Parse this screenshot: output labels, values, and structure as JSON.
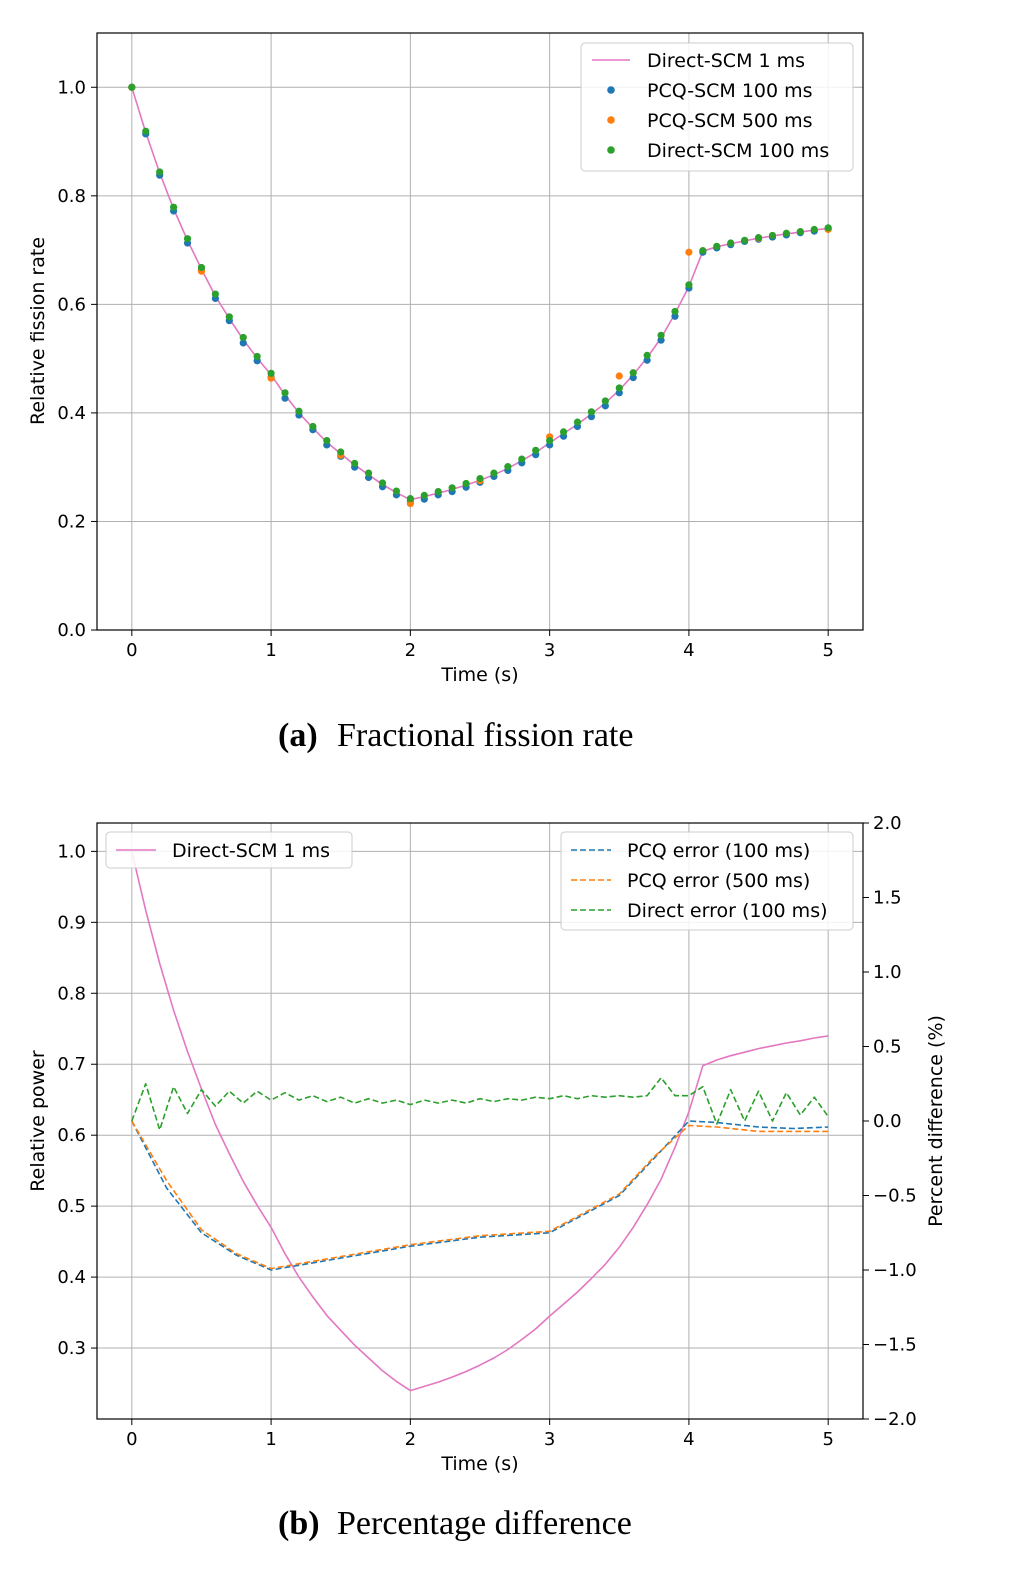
{
  "colors": {
    "direct_1ms": "#e377c2",
    "pcq_100": "#1f77b4",
    "pcq_500": "#ff7f0e",
    "direct_100": "#2ca02c",
    "grid": "#b0b0b0"
  },
  "chart_data": [
    {
      "type": "scatter",
      "panel": "a",
      "caption_label": "(a)",
      "caption_text": "Fractional fission rate",
      "xlabel": "Time (s)",
      "ylabel": "Relative fission rate",
      "xlim": [
        -0.25,
        5.25
      ],
      "ylim": [
        0.0,
        1.1
      ],
      "xticks": [
        0,
        1,
        2,
        3,
        4,
        5
      ],
      "yticks": [
        0.0,
        0.2,
        0.4,
        0.6,
        0.8,
        1.0
      ],
      "xtick_labels": [
        "0",
        "1",
        "2",
        "3",
        "4",
        "5"
      ],
      "ytick_labels": [
        "0.0",
        "0.2",
        "0.4",
        "0.6",
        "0.8",
        "1.0"
      ],
      "grid": true,
      "legend_position": "top-right",
      "legend": [
        "Direct-SCM 1 ms",
        "PCQ-SCM 100 ms",
        "PCQ-SCM 500 ms",
        "Direct-SCM 100 ms"
      ],
      "series": [
        {
          "name": "Direct-SCM 1 ms",
          "style": "line",
          "color_key": "direct_1ms",
          "x": [
            0,
            0.1,
            0.2,
            0.3,
            0.4,
            0.5,
            0.6,
            0.7,
            0.8,
            0.9,
            1.0,
            1.1,
            1.2,
            1.3,
            1.4,
            1.5,
            1.6,
            1.7,
            1.8,
            1.9,
            2.0,
            2.1,
            2.2,
            2.3,
            2.4,
            2.5,
            2.6,
            2.7,
            2.8,
            2.9,
            3.0,
            3.1,
            3.2,
            3.3,
            3.4,
            3.5,
            3.6,
            3.7,
            3.8,
            3.9,
            4.0,
            4.1,
            4.2,
            4.3,
            4.4,
            4.5,
            4.6,
            4.7,
            4.8,
            4.9,
            5.0
          ],
          "y": [
            1.0,
            0.917,
            0.842,
            0.776,
            0.718,
            0.665,
            0.615,
            0.574,
            0.535,
            0.501,
            0.47,
            0.433,
            0.4,
            0.372,
            0.346,
            0.325,
            0.304,
            0.286,
            0.268,
            0.253,
            0.24,
            0.246,
            0.252,
            0.259,
            0.267,
            0.276,
            0.286,
            0.298,
            0.312,
            0.327,
            0.345,
            0.362,
            0.379,
            0.398,
            0.418,
            0.442,
            0.47,
            0.502,
            0.538,
            0.583,
            0.633,
            0.698,
            0.706,
            0.712,
            0.717,
            0.722,
            0.726,
            0.73,
            0.733,
            0.737,
            0.74
          ]
        },
        {
          "name": "PCQ-SCM 100 ms",
          "style": "points",
          "color_key": "pcq_100",
          "x": [
            0,
            0.1,
            0.2,
            0.3,
            0.4,
            0.5,
            0.6,
            0.7,
            0.8,
            0.9,
            1.0,
            1.1,
            1.2,
            1.3,
            1.4,
            1.5,
            1.6,
            1.7,
            1.8,
            1.9,
            2.0,
            2.1,
            2.2,
            2.3,
            2.4,
            2.5,
            2.6,
            2.7,
            2.8,
            2.9,
            3.0,
            3.1,
            3.2,
            3.3,
            3.4,
            3.5,
            3.6,
            3.7,
            3.8,
            3.9,
            4.0,
            4.1,
            4.2,
            4.3,
            4.4,
            4.5,
            4.6,
            4.7,
            4.8,
            4.9,
            5.0
          ],
          "y": [
            1.0,
            0.914,
            0.838,
            0.772,
            0.713,
            0.662,
            0.611,
            0.57,
            0.529,
            0.496,
            0.466,
            0.427,
            0.396,
            0.369,
            0.341,
            0.32,
            0.3,
            0.281,
            0.264,
            0.249,
            0.237,
            0.241,
            0.249,
            0.255,
            0.263,
            0.272,
            0.283,
            0.294,
            0.308,
            0.323,
            0.341,
            0.357,
            0.375,
            0.393,
            0.413,
            0.437,
            0.465,
            0.497,
            0.534,
            0.578,
            0.63,
            0.696,
            0.704,
            0.71,
            0.716,
            0.72,
            0.724,
            0.728,
            0.732,
            0.735,
            0.739
          ]
        },
        {
          "name": "PCQ-SCM 500 ms",
          "style": "points",
          "color_key": "pcq_500",
          "x": [
            0,
            0.5,
            1.0,
            1.5,
            2.0,
            2.5,
            3.0,
            3.5,
            4.0,
            4.5,
            5.0
          ],
          "y": [
            1.0,
            0.661,
            0.464,
            0.322,
            0.233,
            0.275,
            0.356,
            0.468,
            0.696,
            0.722,
            0.738
          ]
        },
        {
          "name": "Direct-SCM 100 ms",
          "style": "points",
          "color_key": "direct_100",
          "x": [
            0,
            0.1,
            0.2,
            0.3,
            0.4,
            0.5,
            0.6,
            0.7,
            0.8,
            0.9,
            1.0,
            1.1,
            1.2,
            1.3,
            1.4,
            1.5,
            1.6,
            1.7,
            1.8,
            1.9,
            2.0,
            2.1,
            2.2,
            2.3,
            2.4,
            2.5,
            2.6,
            2.7,
            2.8,
            2.9,
            3.0,
            3.1,
            3.2,
            3.3,
            3.4,
            3.5,
            3.6,
            3.7,
            3.8,
            3.9,
            4.0,
            4.1,
            4.2,
            4.3,
            4.4,
            4.5,
            4.6,
            4.7,
            4.8,
            4.9,
            5.0
          ],
          "y": [
            1.0,
            0.919,
            0.844,
            0.779,
            0.721,
            0.668,
            0.619,
            0.577,
            0.539,
            0.504,
            0.473,
            0.437,
            0.403,
            0.375,
            0.349,
            0.328,
            0.307,
            0.289,
            0.271,
            0.256,
            0.242,
            0.248,
            0.255,
            0.262,
            0.27,
            0.279,
            0.289,
            0.301,
            0.315,
            0.331,
            0.349,
            0.365,
            0.383,
            0.402,
            0.422,
            0.446,
            0.474,
            0.506,
            0.543,
            0.587,
            0.636,
            0.699,
            0.707,
            0.713,
            0.718,
            0.723,
            0.727,
            0.731,
            0.734,
            0.738,
            0.741
          ]
        }
      ]
    },
    {
      "type": "line",
      "panel": "b",
      "caption_label": "(b)",
      "caption_text": "Percentage difference",
      "xlabel": "Time (s)",
      "ylabel": "Relative power",
      "ylabel_right": "Percent difference (%)",
      "xlim": [
        -0.25,
        5.25
      ],
      "ylim": [
        0.2,
        1.04
      ],
      "ylim_right": [
        -2.0,
        2.0
      ],
      "xticks": [
        0,
        1,
        2,
        3,
        4,
        5
      ],
      "yticks": [
        0.3,
        0.4,
        0.5,
        0.6,
        0.7,
        0.8,
        0.9,
        1.0
      ],
      "yticks_right": [
        -2.0,
        -1.5,
        -1.0,
        -0.5,
        0.0,
        0.5,
        1.0,
        1.5,
        2.0
      ],
      "xtick_labels": [
        "0",
        "1",
        "2",
        "3",
        "4",
        "5"
      ],
      "ytick_labels": [
        "0.3",
        "0.4",
        "0.5",
        "0.6",
        "0.7",
        "0.8",
        "0.9",
        "1.0"
      ],
      "ytick_labels_right": [
        "−2.0",
        "−1.5",
        "−1.0",
        "−0.5",
        "0.0",
        "0.5",
        "1.0",
        "1.5",
        "2.0"
      ],
      "grid": true,
      "legend_left": [
        "Direct-SCM 1 ms"
      ],
      "legend_left_position": "top-left",
      "legend_right": [
        "PCQ error (100 ms)",
        "PCQ error (500 ms)",
        "Direct error (100 ms)"
      ],
      "legend_right_position": "top-right",
      "series": [
        {
          "name": "Direct-SCM 1 ms",
          "axis": "left",
          "style": "solid",
          "color_key": "direct_1ms",
          "x": [
            0,
            0.1,
            0.2,
            0.3,
            0.4,
            0.5,
            0.6,
            0.7,
            0.8,
            0.9,
            1.0,
            1.1,
            1.2,
            1.3,
            1.4,
            1.5,
            1.6,
            1.7,
            1.8,
            1.9,
            2.0,
            2.1,
            2.2,
            2.3,
            2.4,
            2.5,
            2.6,
            2.7,
            2.8,
            2.9,
            3.0,
            3.1,
            3.2,
            3.3,
            3.4,
            3.5,
            3.6,
            3.7,
            3.8,
            3.9,
            4.0,
            4.1,
            4.2,
            4.3,
            4.4,
            4.5,
            4.6,
            4.7,
            4.8,
            4.9,
            5.0
          ],
          "y": [
            1.0,
            0.917,
            0.842,
            0.776,
            0.718,
            0.665,
            0.615,
            0.574,
            0.535,
            0.501,
            0.47,
            0.433,
            0.4,
            0.372,
            0.346,
            0.325,
            0.304,
            0.286,
            0.268,
            0.253,
            0.24,
            0.246,
            0.252,
            0.259,
            0.267,
            0.276,
            0.286,
            0.298,
            0.312,
            0.327,
            0.345,
            0.362,
            0.379,
            0.398,
            0.418,
            0.442,
            0.47,
            0.502,
            0.538,
            0.583,
            0.633,
            0.698,
            0.706,
            0.712,
            0.717,
            0.722,
            0.726,
            0.73,
            0.733,
            0.737,
            0.74
          ]
        },
        {
          "name": "PCQ error (100 ms)",
          "axis": "right",
          "style": "dashed",
          "color_key": "pcq_100",
          "x": [
            0,
            0.25,
            0.5,
            0.75,
            1.0,
            1.5,
            2.0,
            2.5,
            3.0,
            3.5,
            3.75,
            4.0,
            4.2,
            4.5,
            4.75,
            5.0
          ],
          "y": [
            0.0,
            -0.45,
            -0.75,
            -0.9,
            -1.0,
            -0.92,
            -0.84,
            -0.78,
            -0.75,
            -0.5,
            -0.25,
            0.0,
            -0.01,
            -0.04,
            -0.05,
            -0.04
          ]
        },
        {
          "name": "PCQ error (500 ms)",
          "axis": "right",
          "style": "dashed",
          "color_key": "pcq_500",
          "x": [
            0,
            0.25,
            0.5,
            0.75,
            1.0,
            1.5,
            2.0,
            2.5,
            3.0,
            3.5,
            3.75,
            4.0,
            4.2,
            4.5,
            4.75,
            5.0
          ],
          "y": [
            0.0,
            -0.4,
            -0.73,
            -0.89,
            -0.99,
            -0.91,
            -0.83,
            -0.77,
            -0.74,
            -0.49,
            -0.24,
            -0.03,
            -0.04,
            -0.07,
            -0.07,
            -0.07
          ]
        },
        {
          "name": "Direct error (100 ms)",
          "axis": "right",
          "style": "dashed",
          "color_key": "direct_100",
          "x": [
            0,
            0.1,
            0.2,
            0.3,
            0.4,
            0.5,
            0.6,
            0.7,
            0.8,
            0.9,
            1.0,
            1.1,
            1.2,
            1.3,
            1.4,
            1.5,
            1.6,
            1.7,
            1.8,
            1.9,
            2.0,
            2.1,
            2.2,
            2.3,
            2.4,
            2.5,
            2.6,
            2.7,
            2.8,
            2.9,
            3.0,
            3.1,
            3.2,
            3.3,
            3.4,
            3.5,
            3.6,
            3.7,
            3.8,
            3.9,
            4.0,
            4.1,
            4.2,
            4.3,
            4.4,
            4.5,
            4.6,
            4.7,
            4.8,
            4.9,
            5.0
          ],
          "y": [
            0.0,
            0.25,
            -0.06,
            0.23,
            0.05,
            0.21,
            0.1,
            0.2,
            0.12,
            0.2,
            0.14,
            0.19,
            0.14,
            0.17,
            0.13,
            0.16,
            0.12,
            0.15,
            0.12,
            0.14,
            0.11,
            0.14,
            0.12,
            0.14,
            0.12,
            0.15,
            0.13,
            0.15,
            0.14,
            0.16,
            0.15,
            0.17,
            0.15,
            0.17,
            0.16,
            0.17,
            0.16,
            0.17,
            0.29,
            0.17,
            0.17,
            0.23,
            -0.02,
            0.21,
            0.0,
            0.2,
            0.0,
            0.19,
            0.04,
            0.16,
            0.03
          ]
        }
      ]
    }
  ]
}
